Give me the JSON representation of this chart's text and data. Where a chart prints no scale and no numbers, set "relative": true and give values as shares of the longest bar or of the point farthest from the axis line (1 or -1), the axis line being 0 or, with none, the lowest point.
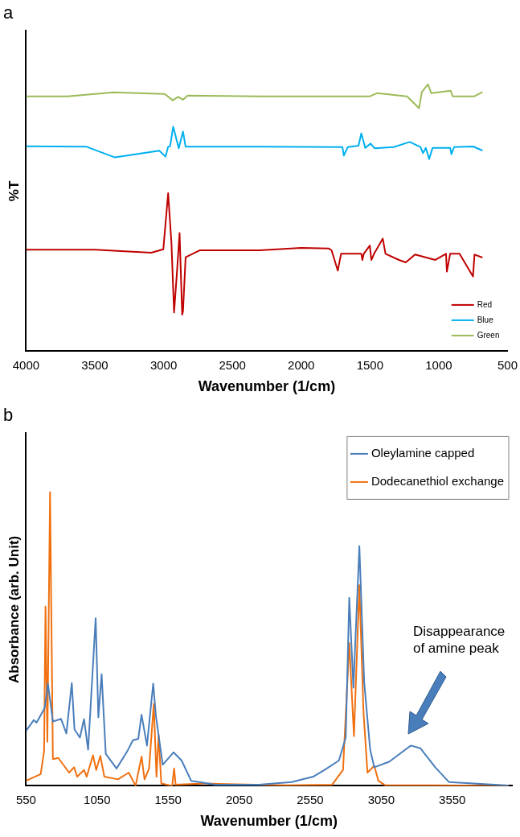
{
  "chart_data": [
    {
      "type": "line",
      "title": "a",
      "xlabel": "Wavenumber (1/cm)",
      "ylabel": "%T",
      "relative": true,
      "xlim": [
        4000,
        500
      ],
      "xticks": [
        4000,
        3500,
        3000,
        2500,
        2000,
        1500,
        1000,
        500
      ],
      "legend": "bottom right",
      "marker": "none",
      "grid": false,
      "series": [
        {
          "name": "Red",
          "color": "#c00000",
          "x": [
            4000,
            3500,
            3090,
            3002,
            2967,
            2943,
            2924,
            2904,
            2884,
            2865,
            2859,
            2840,
            2738,
            2300,
            2000,
            1800,
            1779,
            1734,
            1710,
            1563,
            1555,
            1545,
            1501,
            1490,
            1470,
            1407,
            1387,
            1289,
            1240,
            1172,
            1025,
            947,
            941,
            917,
            849,
            751,
            740,
            682
          ],
          "values": [
            0.38,
            0.38,
            0.369,
            0.382,
            0.592,
            0.405,
            0.145,
            0.288,
            0.443,
            0.137,
            0.15,
            0.352,
            0.378,
            0.378,
            0.387,
            0.385,
            0.378,
            0.302,
            0.365,
            0.365,
            0.342,
            0.365,
            0.396,
            0.342,
            0.365,
            0.422,
            0.365,
            0.342,
            0.333,
            0.362,
            0.342,
            0.365,
            0.298,
            0.365,
            0.365,
            0.28,
            0.362,
            0.351
          ]
        },
        {
          "name": "Blue",
          "color": "#00b0f0",
          "x": [
            4000,
            3560,
            3354,
            3031,
            2986,
            2967,
            2953,
            2930,
            2890,
            2859,
            2840,
            2300,
            1700,
            1690,
            1661,
            1583,
            1563,
            1534,
            1495,
            1466,
            1328,
            1211,
            1133,
            1114,
            1094,
            1070,
            1045,
            917,
            908,
            888,
            751,
            682
          ],
          "values": [
            0.768,
            0.766,
            0.726,
            0.751,
            0.729,
            0.766,
            0.768,
            0.841,
            0.76,
            0.823,
            0.766,
            0.766,
            0.765,
            0.733,
            0.765,
            0.77,
            0.816,
            0.762,
            0.778,
            0.76,
            0.765,
            0.784,
            0.765,
            0.742,
            0.762,
            0.72,
            0.762,
            0.762,
            0.738,
            0.765,
            0.767,
            0.752
          ]
        },
        {
          "name": "Green",
          "color": "#9bbb59",
          "x": [
            4000,
            3700,
            3364,
            2992,
            2934,
            2894,
            2859,
            2826,
            2300,
            1500,
            1446,
            1231,
            1143,
            1123,
            1078,
            1055,
            914,
            898,
            741,
            682
          ],
          "values": [
            0.955,
            0.955,
            0.97,
            0.964,
            0.94,
            0.953,
            0.942,
            0.958,
            0.955,
            0.955,
            0.967,
            0.955,
            0.91,
            0.971,
            1.0,
            0.967,
            0.976,
            0.955,
            0.955,
            0.971
          ]
        }
      ]
    },
    {
      "type": "line",
      "title": "b",
      "xlabel": "Wavenumber (1/cm)",
      "ylabel": "Absorbance (arb. Unit)",
      "relative": true,
      "xlim": [
        550,
        3970
      ],
      "xticks": [
        550,
        1050,
        1550,
        2050,
        2550,
        3050,
        3550
      ],
      "legend": "top right",
      "marker": "none",
      "grid": false,
      "annotations": [
        "Disappearance of amine peak"
      ],
      "series": [
        {
          "name": "Oleylamine capped",
          "color": "#4a7ebb",
          "x": [
            550,
            605,
            624,
            681,
            704,
            739,
            796,
            834,
            872,
            891,
            929,
            958,
            987,
            1040,
            1059,
            1082,
            1111,
            1187,
            1263,
            1302,
            1340,
            1363,
            1401,
            1445,
            1464,
            1512,
            1588,
            1645,
            1712,
            1884,
            2189,
            2419,
            2571,
            2667,
            2752,
            2800,
            2825,
            2854,
            2896,
            2930,
            2972,
            3001,
            3106,
            3259,
            3325,
            3430,
            3526,
            3946
          ],
          "values": [
            0.187,
            0.224,
            0.215,
            0.265,
            0.348,
            0.219,
            0.228,
            0.178,
            0.35,
            0.192,
            0.164,
            0.227,
            0.123,
            0.57,
            0.233,
            0.38,
            0.109,
            0.059,
            0.118,
            0.155,
            0.16,
            0.242,
            0.137,
            0.348,
            0.238,
            0.072,
            0.114,
            0.086,
            0.017,
            0.004,
            0.004,
            0.013,
            0.031,
            0.059,
            0.086,
            0.164,
            0.64,
            0.334,
            0.816,
            0.352,
            0.123,
            0.063,
            0.082,
            0.137,
            0.128,
            0.063,
            0.013,
            0.001
          ]
        },
        {
          "name": "Dodecanethiol exchange",
          "color": "#f07010",
          "x": [
            550,
            653,
            677,
            687,
            700,
            719,
            739,
            777,
            853,
            888,
            910,
            958,
            977,
            1021,
            1044,
            1073,
            1101,
            1197,
            1273,
            1321,
            1363,
            1384,
            1416,
            1449,
            1468,
            1483,
            1502,
            1579,
            1592,
            1603,
            1808,
            1960,
            2380,
            2705,
            2781,
            2825,
            2858,
            2896,
            2925,
            2953,
            3001,
            3030,
            3077,
            3430,
            3946
          ],
          "values": [
            0.017,
            0.04,
            0.118,
            0.61,
            0.15,
            1.0,
            0.091,
            0.095,
            0.045,
            0.063,
            0.031,
            0.054,
            0.031,
            0.104,
            0.054,
            0.102,
            0.031,
            0.022,
            0.045,
            0,
            0.1,
            0.022,
            0.059,
            0.279,
            0.031,
            0.173,
            0.008,
            0,
            0.059,
            0.004,
            0.008,
            0.006,
            0.002,
            0.004,
            0.054,
            0.486,
            0.169,
            0.683,
            0.252,
            0.045,
            0.068,
            0.017,
            0.002,
            0.002,
            0
          ]
        }
      ]
    }
  ]
}
